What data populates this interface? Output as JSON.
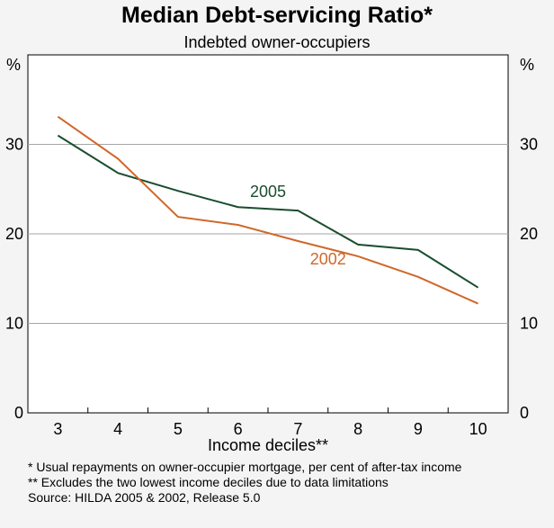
{
  "chart_data": {
    "type": "line",
    "title": "Median Debt-servicing Ratio*",
    "subtitle": "Indebted owner-occupiers",
    "xlabel": "Income deciles**",
    "ylabel": "%",
    "ylabel_right": "%",
    "categories": [
      "3",
      "4",
      "5",
      "6",
      "7",
      "8",
      "9",
      "10"
    ],
    "ylim": [
      0,
      40
    ],
    "yticks": [
      0,
      10,
      20,
      30
    ],
    "grid": true,
    "series": [
      {
        "name": "2005",
        "color": "#1a4d2e",
        "values": [
          31.0,
          26.8,
          24.8,
          23.0,
          22.6,
          18.8,
          18.2,
          14.0
        ]
      },
      {
        "name": "2002",
        "color": "#d0672a",
        "values": [
          33.1,
          28.4,
          21.9,
          21.0,
          19.2,
          17.5,
          15.2,
          12.2
        ]
      }
    ]
  },
  "footnotes": [
    "*   Usual repayments on owner-occupier mortgage, per cent of after-tax income",
    "** Excludes the two lowest income deciles due to data limitations",
    "Source: HILDA 2005 & 2002, Release 5.0"
  ]
}
